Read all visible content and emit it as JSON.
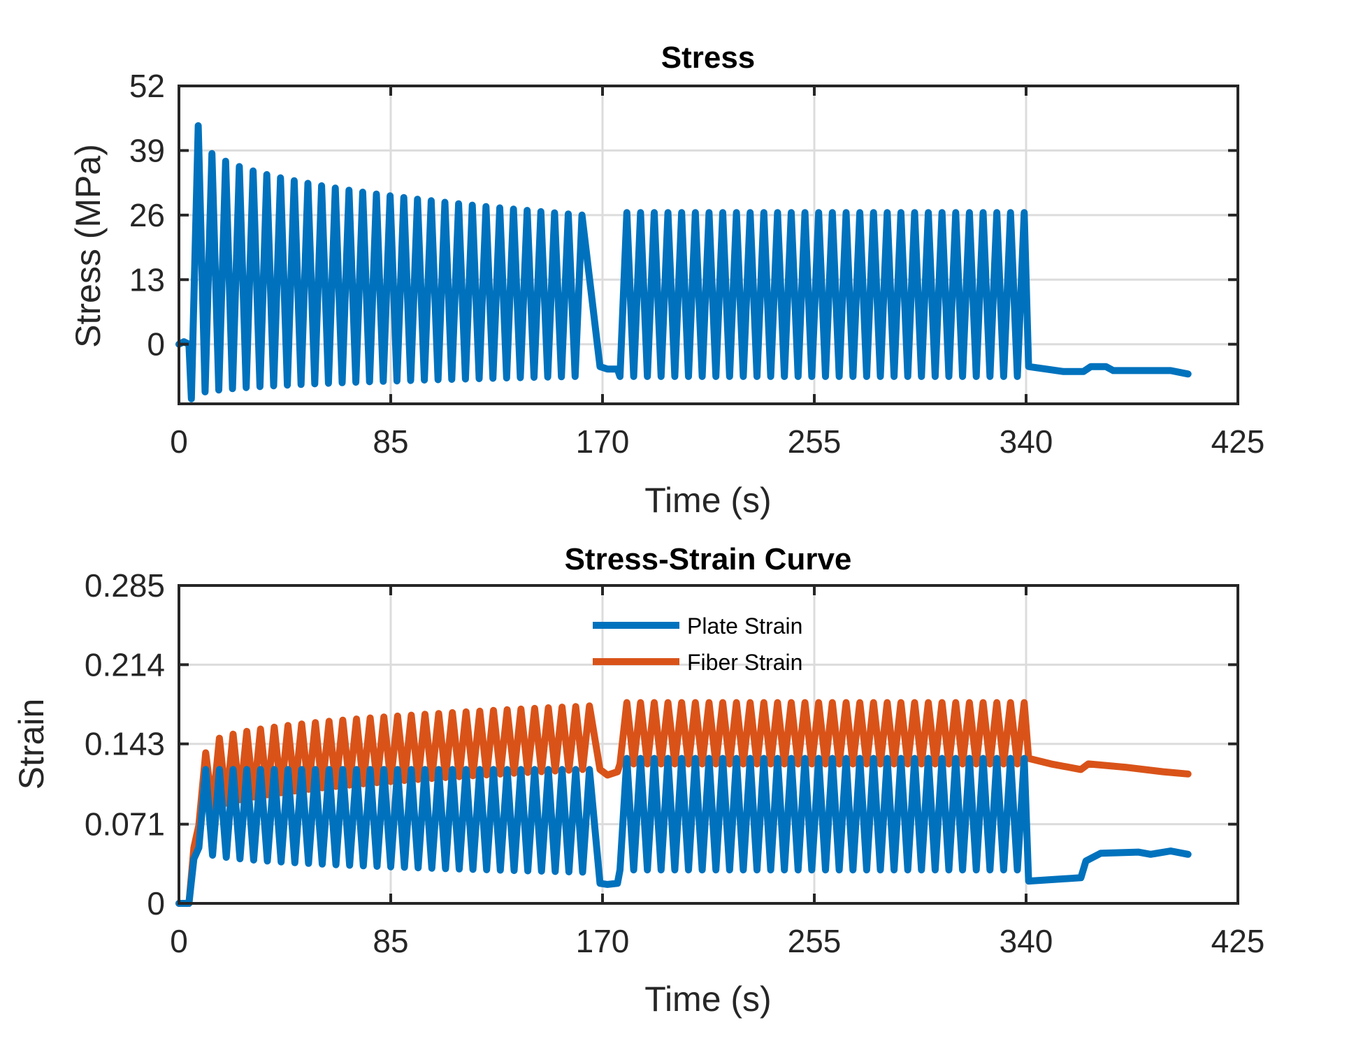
{
  "chart_data": [
    {
      "type": "line",
      "title": "Stress",
      "xlabel": "Time (s)",
      "ylabel": "Stress (MPa)",
      "xlim": [
        0,
        425
      ],
      "ylim": [
        -12,
        52
      ],
      "xticks": [
        0,
        85,
        170,
        255,
        340,
        425
      ],
      "yticks": [
        0,
        13,
        26,
        39,
        52
      ],
      "grid": true,
      "series": [
        {
          "color": "#0072BD",
          "description_points": {
            "cycle_period_s": 5.5,
            "phase1_window": [
              0,
              169
            ],
            "phase1_peak_start": 44,
            "phase1_trough_start": -11,
            "phase1_peak_end": 26,
            "phase1_trough_end": -6.5,
            "gap": [
              169,
              177
            ],
            "gap_level": -5,
            "phase2_window": [
              177,
              340
            ],
            "phase2_peak": 26.5,
            "phase2_trough": -6.5,
            "tail": [
              [
                341,
                -4.5
              ],
              [
                355,
                -5.5
              ],
              [
                363,
                -5.5
              ],
              [
                366,
                -4.5
              ],
              [
                372,
                -4.5
              ],
              [
                375,
                -5.3
              ],
              [
                398,
                -5.3
              ],
              [
                405,
                -6
              ]
            ]
          }
        }
      ]
    },
    {
      "type": "line",
      "title": "Stress-Strain Curve",
      "xlabel": "Time (s)",
      "ylabel": "Strain",
      "xlim": [
        0,
        425
      ],
      "ylim": [
        0,
        0.285
      ],
      "xticks": [
        0,
        85,
        170,
        255,
        340,
        425
      ],
      "yticks": [
        0,
        0.071,
        0.143,
        0.214,
        0.285
      ],
      "ytick_labels": [
        "0",
        "0.071",
        "0.143",
        "0.214",
        "0.285"
      ],
      "grid": true,
      "legend": {
        "position": "top-center",
        "entries": [
          "Plate Strain",
          "Fiber Strain"
        ]
      },
      "series": [
        {
          "name": "Plate Strain",
          "color": "#0072BD",
          "description_points": {
            "phase1_peak": 0.12,
            "phase1_trough_start": 0.05,
            "phase1_trough_end": 0.028,
            "gap_level": 0.018,
            "phase2_peak": 0.13,
            "phase2_trough": 0.03,
            "tail": [
              [
                341,
                0.02
              ],
              [
                355,
                0.022
              ],
              [
                362,
                0.023
              ],
              [
                364,
                0.038
              ],
              [
                370,
                0.045
              ],
              [
                385,
                0.046
              ],
              [
                390,
                0.044
              ],
              [
                398,
                0.047
              ],
              [
                405,
                0.044
              ]
            ]
          }
        },
        {
          "name": "Fiber Strain",
          "color": "#D95319",
          "description_points": {
            "phase1_peak_start": 0.135,
            "phase1_peak_end": 0.177,
            "phase1_trough_start": 0.07,
            "phase1_trough_end": 0.12,
            "gap_level": 0.118,
            "phase2_peak": 0.18,
            "phase2_trough": 0.125,
            "tail": [
              [
                341,
                0.13
              ],
              [
                350,
                0.125
              ],
              [
                362,
                0.12
              ],
              [
                365,
                0.125
              ],
              [
                380,
                0.122
              ],
              [
                395,
                0.118
              ],
              [
                405,
                0.116
              ]
            ]
          }
        }
      ]
    }
  ]
}
